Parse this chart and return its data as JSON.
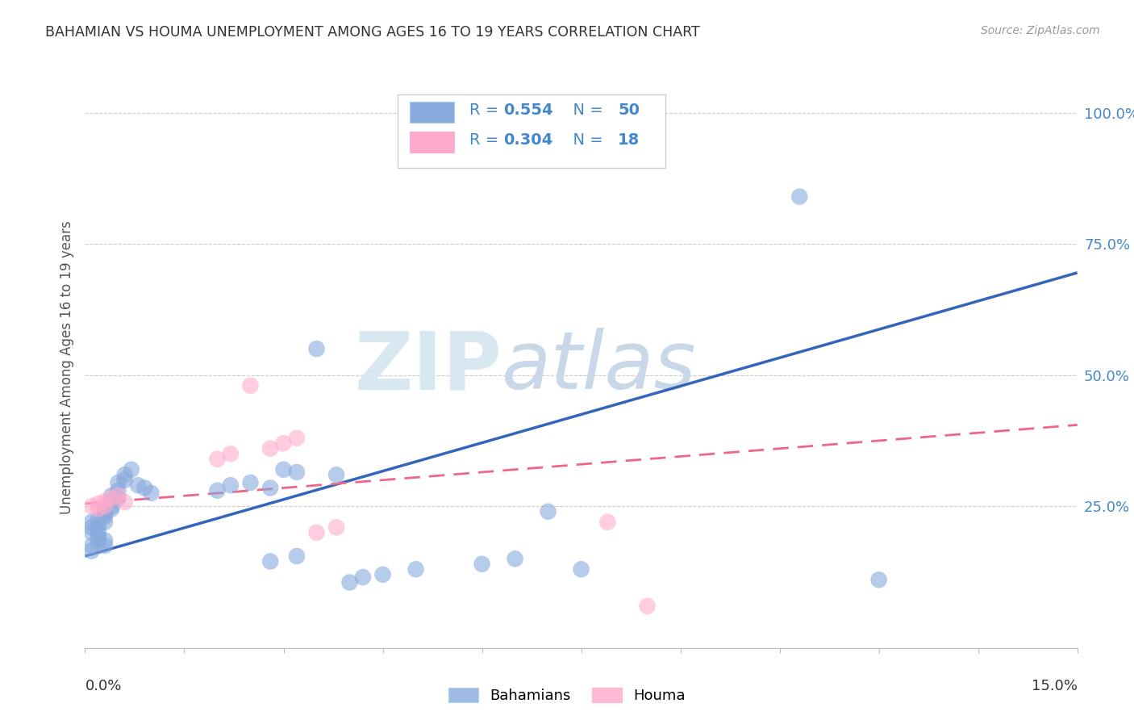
{
  "title": "BAHAMIAN VS HOUMA UNEMPLOYMENT AMONG AGES 16 TO 19 YEARS CORRELATION CHART",
  "source": "Source: ZipAtlas.com",
  "ylabel": "Unemployment Among Ages 16 to 19 years",
  "xlim": [
    0.0,
    0.15
  ],
  "ylim": [
    -0.02,
    1.05
  ],
  "legend1_r": "0.554",
  "legend1_n": "50",
  "legend2_r": "0.304",
  "legend2_n": "18",
  "blue_color": "#88AADD",
  "pink_color": "#FFAACC",
  "blue_line_color": "#3366BB",
  "pink_line_color": "#EE6688",
  "watermark_color": "#D8E8F0",
  "ytick_color": "#4488CC",
  "grid_color": "#CCCCCC",
  "blue_line_x0": 0.0,
  "blue_line_x1": 0.15,
  "blue_line_y0": 0.155,
  "blue_line_y1": 0.695,
  "pink_line_x0": 0.0,
  "pink_line_x1": 0.15,
  "pink_line_y0": 0.255,
  "pink_line_y1": 0.405,
  "blue_x": [
    0.001,
    0.001,
    0.001,
    0.001,
    0.001,
    0.002,
    0.002,
    0.002,
    0.002,
    0.002,
    0.002,
    0.003,
    0.003,
    0.003,
    0.003,
    0.003,
    0.003,
    0.004,
    0.004,
    0.004,
    0.004,
    0.005,
    0.005,
    0.005,
    0.006,
    0.006,
    0.007,
    0.008,
    0.009,
    0.01,
    0.02,
    0.022,
    0.025,
    0.028,
    0.03,
    0.032,
    0.035,
    0.038,
    0.04,
    0.042,
    0.045,
    0.05,
    0.028,
    0.032,
    0.06,
    0.065,
    0.07,
    0.075,
    0.108,
    0.12
  ],
  "blue_y": [
    0.2,
    0.21,
    0.22,
    0.175,
    0.165,
    0.205,
    0.215,
    0.225,
    0.19,
    0.18,
    0.195,
    0.23,
    0.235,
    0.22,
    0.24,
    0.185,
    0.175,
    0.25,
    0.26,
    0.245,
    0.27,
    0.28,
    0.265,
    0.295,
    0.3,
    0.31,
    0.32,
    0.29,
    0.285,
    0.275,
    0.28,
    0.29,
    0.295,
    0.285,
    0.32,
    0.315,
    0.55,
    0.31,
    0.105,
    0.115,
    0.12,
    0.13,
    0.145,
    0.155,
    0.14,
    0.15,
    0.24,
    0.13,
    0.84,
    0.11
  ],
  "pink_x": [
    0.001,
    0.002,
    0.002,
    0.003,
    0.003,
    0.004,
    0.005,
    0.006,
    0.02,
    0.022,
    0.025,
    0.028,
    0.03,
    0.032,
    0.035,
    0.038,
    0.079,
    0.085
  ],
  "pink_y": [
    0.25,
    0.255,
    0.245,
    0.26,
    0.25,
    0.265,
    0.27,
    0.258,
    0.34,
    0.35,
    0.48,
    0.36,
    0.37,
    0.38,
    0.2,
    0.21,
    0.22,
    0.06
  ]
}
